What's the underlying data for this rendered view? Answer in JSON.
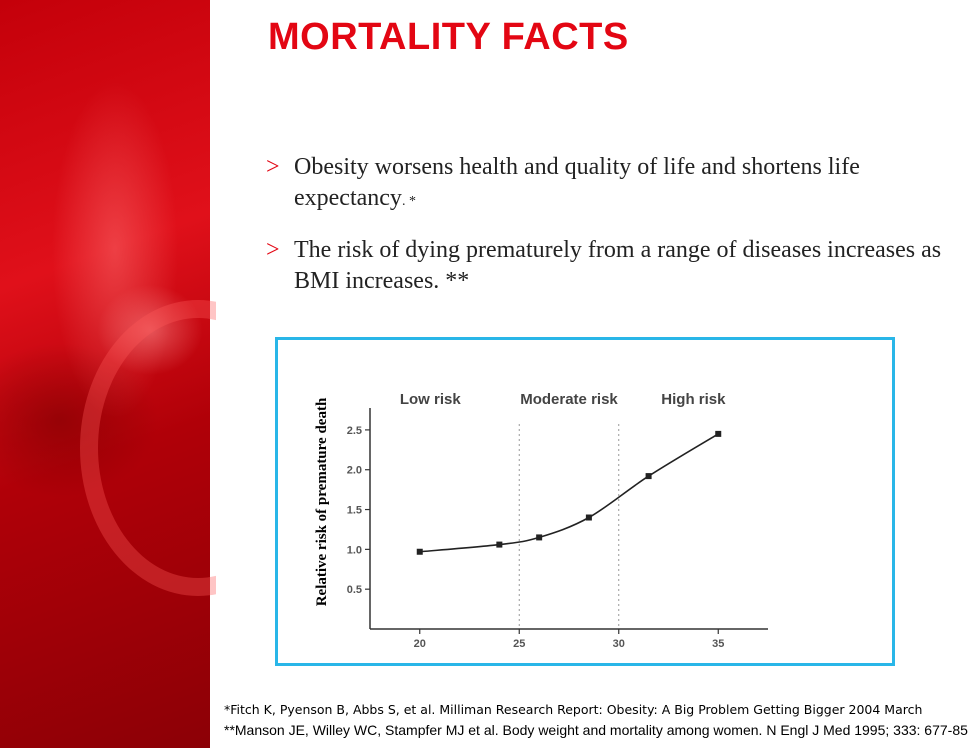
{
  "slide": {
    "title": "MORTALITY FACTS",
    "bullets": [
      {
        "marker": ">",
        "text": "Obesity worsens health and quality of life and shortens life expectancy",
        "suffix": ". *"
      },
      {
        "marker": ">",
        "text": "The risk of dying prematurely from a range of diseases increases as BMI increases. **",
        "suffix": ""
      }
    ],
    "references": [
      "*Fitch K, Pyenson B, Abbs S, et al. Milliman Research Report: Obesity: A Big Problem Getting Bigger 2004 March",
      "**Manson JE, Willey WC, Stampfer MJ et al. Body weight and mortality among women. N Engl J Med 1995; 333: 677-85"
    ]
  },
  "colors": {
    "accent": "#e30613",
    "frame": "#29b6e8"
  },
  "chart_data": {
    "type": "line",
    "title": "",
    "xlabel": "",
    "ylabel": "Relative risk of premature death",
    "x": [
      20,
      24,
      26,
      28.5,
      31.5,
      35
    ],
    "series": [
      {
        "name": "Relative risk",
        "values": [
          0.97,
          1.06,
          1.15,
          1.4,
          1.92,
          2.45
        ]
      }
    ],
    "xticks": [
      20,
      25,
      30,
      35
    ],
    "xtick_labels": [
      "20",
      "25",
      "30",
      "35"
    ],
    "yticks": [
      0.5,
      1.0,
      1.5,
      2.0,
      2.5
    ],
    "ytick_labels": [
      "0.5",
      "1.0",
      "1.5",
      "2.0",
      "2.5"
    ],
    "xlim": [
      17.5,
      37.5
    ],
    "ylim": [
      0,
      2.75
    ],
    "zone_boundaries": [
      25,
      30
    ],
    "zones": [
      "Low risk",
      "Moderate risk",
      "High risk"
    ],
    "grid": false
  }
}
